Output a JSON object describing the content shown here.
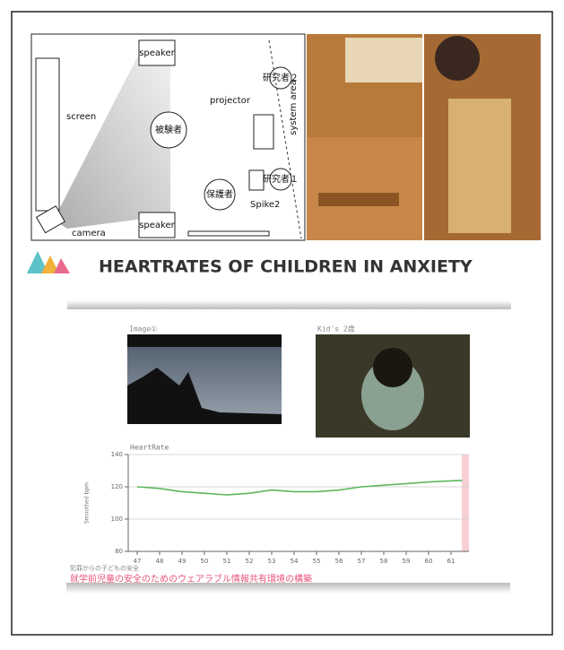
{
  "diagram": {
    "labels": {
      "speaker_top": "speaker",
      "speaker_bottom": "speaker",
      "screen": "screen",
      "camera": "camera",
      "projector": "projector",
      "system_area": "system area",
      "researcher2": "研究者２",
      "researcher1": "研究者１",
      "subject": "被験者",
      "guardian": "保護者",
      "spike": "Spike2"
    }
  },
  "header": {
    "title": "HEARTRATES OF CHILDREN IN ANXIETY"
  },
  "video": {
    "left_label": "Image①",
    "right_label": "Kid's 2歳"
  },
  "chart": {
    "type": "line",
    "title": "HeartRate",
    "ylabel": "Smoothed bpm",
    "x": [
      47,
      48,
      49,
      50,
      51,
      52,
      53,
      54,
      55,
      56,
      57,
      58,
      59,
      60,
      61.5
    ],
    "values": [
      120,
      119,
      117,
      116,
      115,
      116,
      118,
      117,
      117,
      118,
      120,
      121,
      122,
      123,
      124
    ],
    "color": "#5cb85c",
    "xlim": [
      46.6,
      61.8
    ],
    "ylim": [
      80,
      140
    ],
    "xticks": [
      47,
      48,
      49,
      50,
      51,
      52,
      53,
      54,
      55,
      56,
      57,
      58,
      59,
      60,
      61
    ],
    "yticks": [
      80,
      100,
      120,
      140
    ]
  },
  "captions": {
    "small": "犯罪からの子どもの安全",
    "main": "就学前児童の安全のためのウェアラブル情報共有環境の構築"
  }
}
